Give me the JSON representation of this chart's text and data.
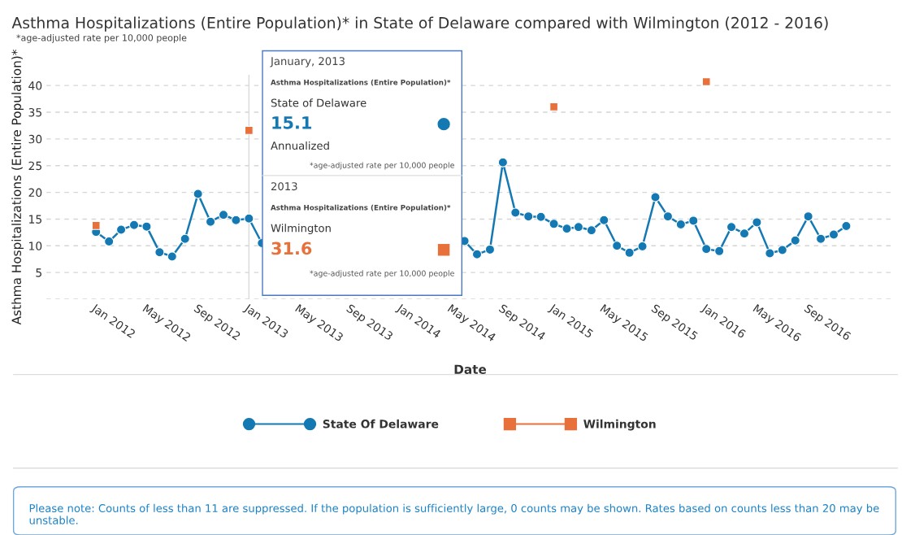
{
  "chart_data": {
    "type": "line",
    "title": "Asthma Hospitalizations (Entire Population)* in State of Delaware compared with Wilmington (2012 - 2016)",
    "subtitle": "*age-adjusted rate per 10,000 people",
    "xlabel": "Date",
    "ylabel": "Asthma Hospitalizations (Entire Population)*",
    "x": [
      "2012-01",
      "2012-02",
      "2012-03",
      "2012-04",
      "2012-05",
      "2012-06",
      "2012-07",
      "2012-08",
      "2012-09",
      "2012-10",
      "2012-11",
      "2012-12",
      "2013-01",
      "2013-02",
      "2013-03",
      "2013-04",
      "2013-05",
      "2013-06",
      "2013-07",
      "2013-08",
      "2013-09",
      "2013-10",
      "2013-11",
      "2013-12",
      "2014-01",
      "2014-02",
      "2014-03",
      "2014-04",
      "2014-05",
      "2014-06",
      "2014-07",
      "2014-08",
      "2014-09",
      "2014-10",
      "2014-11",
      "2014-12",
      "2015-01",
      "2015-02",
      "2015-03",
      "2015-04",
      "2015-05",
      "2015-06",
      "2015-07",
      "2015-08",
      "2015-09",
      "2015-10",
      "2015-11",
      "2015-12",
      "2016-01",
      "2016-02",
      "2016-03",
      "2016-04",
      "2016-05",
      "2016-06",
      "2016-07",
      "2016-08",
      "2016-09",
      "2016-10",
      "2016-11",
      "2016-12"
    ],
    "series": [
      {
        "name": "State Of Delaware",
        "color": "#1479b3",
        "marker": "circle",
        "line_style": "solid",
        "values": [
          12.6,
          10.8,
          13.0,
          13.9,
          13.6,
          8.8,
          8.0,
          11.3,
          19.7,
          14.5,
          15.8,
          14.8,
          15.1,
          10.5,
          null,
          null,
          null,
          null,
          null,
          null,
          null,
          null,
          null,
          null,
          null,
          null,
          null,
          null,
          null,
          10.9,
          8.4,
          9.3,
          25.6,
          16.2,
          15.5,
          15.4,
          14.1,
          13.2,
          13.5,
          12.9,
          14.8,
          10.0,
          8.7,
          9.9,
          19.1,
          15.5,
          14.0,
          14.7,
          9.4,
          9.0,
          13.5,
          12.3,
          14.4,
          8.6,
          9.2,
          11.0,
          15.5,
          11.3,
          12.1,
          13.7
        ]
      },
      {
        "name": "Wilmington",
        "type": "scatter",
        "color": "#e8703a",
        "marker": "square",
        "line_style": "none",
        "x": [
          "2012-01",
          "2013-01",
          "2014-01",
          "2015-01",
          "2016-01"
        ],
        "values": [
          13.8,
          31.6,
          null,
          36.0,
          40.7
        ]
      }
    ],
    "xlim": [
      "2011-09-04",
      "2017-03-25"
    ],
    "xticks": [
      {
        "value": "2012-01-01",
        "label": "Jan 2012"
      },
      {
        "value": "2012-05-01",
        "label": "May 2012"
      },
      {
        "value": "2012-09-01",
        "label": "Sep 2012"
      },
      {
        "value": "2013-01-01",
        "label": "Jan 2013"
      },
      {
        "value": "2013-05-01",
        "label": "May 2013"
      },
      {
        "value": "2013-09-01",
        "label": "Sep 2013"
      },
      {
        "value": "2014-01-01",
        "label": "Jan 2014"
      },
      {
        "value": "2014-05-01",
        "label": "May 2014"
      },
      {
        "value": "2014-09-01",
        "label": "Sep 2014"
      },
      {
        "value": "2015-01-01",
        "label": "Jan 2015"
      },
      {
        "value": "2015-05-01",
        "label": "May 2015"
      },
      {
        "value": "2015-09-01",
        "label": "Sep 2015"
      },
      {
        "value": "2016-01-01",
        "label": "Jan 2016"
      },
      {
        "value": "2016-05-01",
        "label": "May 2016"
      },
      {
        "value": "2016-09-01",
        "label": "Sep 2016"
      }
    ],
    "ylim": [
      0,
      42
    ],
    "yticks": [
      {
        "value": 0,
        "label": null
      },
      5,
      10,
      15,
      20,
      25,
      30,
      35,
      40
    ],
    "grid": "y",
    "legend": "bottom",
    "ref_lines": [
      {
        "axis": "x",
        "value": "2013-01-01",
        "label": null,
        "color": "#d9d9d9"
      }
    ],
    "annotations": [
      "Please note: Counts of less than 11 are suppressed. If the population is sufficiently large, 0 counts may be shown. Rates based on counts less than 20 may be unstable.",
      "January, 2013",
      "Asthma Hospitalizations (Entire Population)*",
      "State of Delaware",
      "15.1",
      "Annualized",
      "*age-adjusted rate per 10,000 people",
      "2013",
      "Asthma Hospitalizations (Entire Population)*",
      "Wilmington",
      "31.6",
      "*age-adjusted rate per 10,000 people"
    ]
  }
}
